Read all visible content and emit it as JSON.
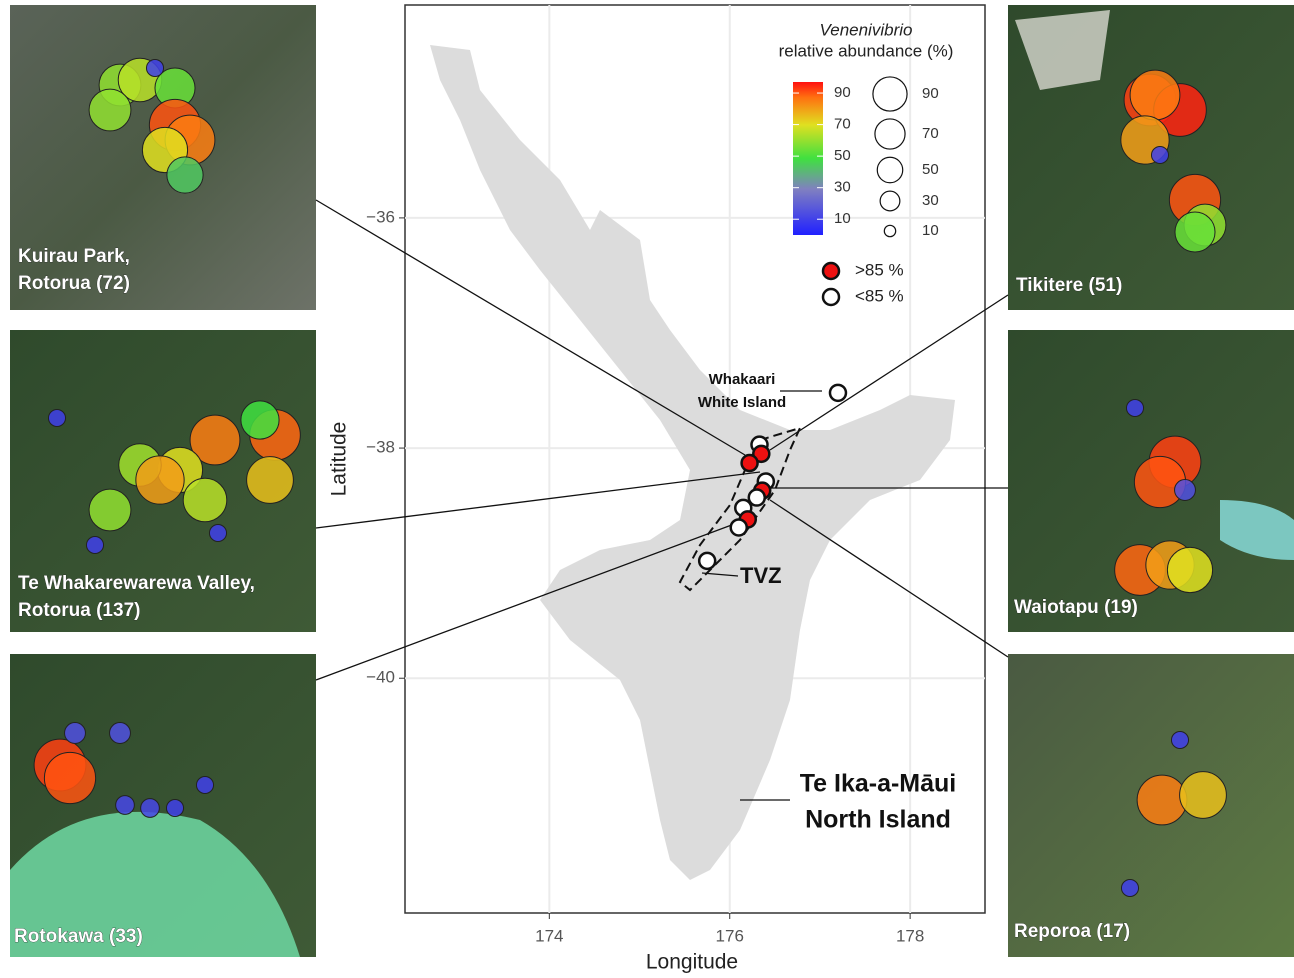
{
  "map": {
    "xlabel": "Longitude",
    "ylabel": "Latitude",
    "xlim": [
      172.4,
      178.83
    ],
    "ylim": [
      -42.04,
      -34.15
    ],
    "xticks": [
      174,
      176,
      178
    ],
    "yticks": [
      {
        "value": -36,
        "label": "−36"
      },
      {
        "value": -38,
        "label": "−38"
      },
      {
        "value": -40,
        "label": "−40"
      }
    ],
    "grid": true,
    "sites": [
      {
        "lon": 177.2,
        "lat": -37.52,
        "above_85": false
      },
      {
        "lon": 176.33,
        "lat": -37.97,
        "above_85": false
      },
      {
        "lon": 176.35,
        "lat": -38.05,
        "above_85": true
      },
      {
        "lon": 176.22,
        "lat": -38.13,
        "above_85": true
      },
      {
        "lon": 176.4,
        "lat": -38.29,
        "above_85": false
      },
      {
        "lon": 176.36,
        "lat": -38.37,
        "above_85": true
      },
      {
        "lon": 176.3,
        "lat": -38.43,
        "above_85": false
      },
      {
        "lon": 176.15,
        "lat": -38.52,
        "above_85": false
      },
      {
        "lon": 176.2,
        "lat": -38.62,
        "above_85": true
      },
      {
        "lon": 176.1,
        "lat": -38.69,
        "above_85": false
      },
      {
        "lon": 175.75,
        "lat": -38.98,
        "above_85": false
      }
    ],
    "annotations": {
      "whakaari": [
        "Whakaari",
        "White Island"
      ],
      "tvz": "TVZ",
      "island": [
        "Te Ika-a-Māui",
        "North Island"
      ]
    },
    "legend": {
      "title": [
        "Venenivibrio",
        "relative abundance (%)"
      ],
      "colorbar_lim": [
        0,
        97
      ],
      "colorbar_ticks": [
        10,
        30,
        50,
        70,
        90
      ],
      "size_ticks": [
        10,
        30,
        50,
        70,
        90
      ],
      "high_label": ">85 %",
      "low_label": "<85 %"
    }
  },
  "insets": [
    {
      "label": [
        "Kuirau Park,",
        "Rotorua (72)"
      ],
      "abundances": [
        60,
        65,
        55,
        90,
        85,
        70,
        45,
        10,
        60
      ]
    },
    {
      "label": [
        "Te Whakarewarewa Valley,",
        "Rotorua (137)"
      ],
      "abundances": [
        88,
        85,
        70,
        62,
        60,
        50,
        75,
        80,
        65,
        10,
        10,
        10
      ]
    },
    {
      "label": [
        "Rotokawa (33)"
      ],
      "abundances": [
        92,
        90,
        15,
        15,
        12,
        12,
        10,
        10
      ]
    },
    {
      "label": [
        "Tikitere (51)"
      ],
      "abundances": [
        92,
        95,
        85,
        80,
        90,
        60,
        55,
        10
      ]
    },
    {
      "label": [
        "Waiotapu (19)"
      ],
      "abundances": [
        92,
        90,
        88,
        80,
        70,
        15,
        10
      ]
    },
    {
      "label": [
        "Reporoa (17)"
      ],
      "abundances": [
        85,
        75,
        10,
        10
      ]
    }
  ]
}
